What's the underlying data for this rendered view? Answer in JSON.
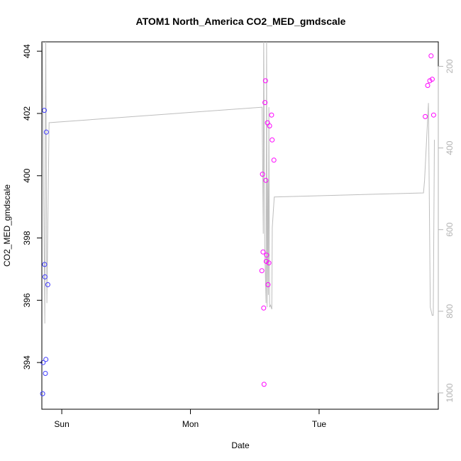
{
  "chart_data": {
    "type": "scatter",
    "title": "ATOM1 North_America CO2_MED_gmdscale",
    "xlabel": "Date",
    "ylabel": "CO2_MED_gmdscale",
    "x_axis": {
      "type": "date",
      "range": [
        "Sat 20:17",
        "Tue 22:14"
      ],
      "ticks": [
        {
          "value": "Sun 00:00",
          "label": "Sun"
        },
        {
          "value": "Mon 00:00",
          "label": "Mon"
        },
        {
          "value": "Tue 00:00",
          "label": "Tue"
        }
      ]
    },
    "y_axis": {
      "range": [
        392.5,
        404.3
      ],
      "ticks": [
        394,
        396,
        398,
        400,
        402,
        404
      ]
    },
    "y2_axis": {
      "reversed": true,
      "range": [
        1040,
        140
      ],
      "ticks": [
        200,
        400,
        600,
        800,
        1000
      ],
      "color": "#b3b3b3"
    },
    "series": [
      {
        "kind": "points",
        "color_scale": [
          "#3b3bff",
          "#ff00ff"
        ],
        "points": [
          {
            "x": "Sat 20:26",
            "y": 393.0
          },
          {
            "x": "Sat 20:31",
            "y": 394.0
          },
          {
            "x": "Sat 20:45",
            "y": 402.1
          },
          {
            "x": "Sat 20:48",
            "y": 397.15
          },
          {
            "x": "Sat 20:52",
            "y": 396.75
          },
          {
            "x": "Sat 20:57",
            "y": 393.65
          },
          {
            "x": "Sat 21:02",
            "y": 394.1
          },
          {
            "x": "Sat 21:07",
            "y": 401.4
          },
          {
            "x": "Sat 21:24",
            "y": 396.5
          },
          {
            "x": "Mon 13:19",
            "y": 396.95
          },
          {
            "x": "Mon 13:26",
            "y": 400.05
          },
          {
            "x": "Mon 13:33",
            "y": 397.55
          },
          {
            "x": "Mon 13:40",
            "y": 395.75
          },
          {
            "x": "Mon 13:44",
            "y": 393.3
          },
          {
            "x": "Mon 13:54",
            "y": 402.35
          },
          {
            "x": "Mon 14:00",
            "y": 403.05
          },
          {
            "x": "Mon 14:04",
            "y": 399.85
          },
          {
            "x": "Mon 14:08",
            "y": 397.25
          },
          {
            "x": "Mon 14:12",
            "y": 397.45
          },
          {
            "x": "Mon 14:22",
            "y": 401.7
          },
          {
            "x": "Mon 14:28",
            "y": 396.5
          },
          {
            "x": "Mon 14:38",
            "y": 397.2
          },
          {
            "x": "Mon 14:46",
            "y": 401.6
          },
          {
            "x": "Mon 15:08",
            "y": 401.95
          },
          {
            "x": "Mon 15:14",
            "y": 401.15
          },
          {
            "x": "Mon 15:34",
            "y": 400.5
          },
          {
            "x": "Tue 19:48",
            "y": 401.9
          },
          {
            "x": "Tue 20:15",
            "y": 402.9
          },
          {
            "x": "Tue 20:39",
            "y": 403.05
          },
          {
            "x": "Tue 20:53",
            "y": 403.85
          },
          {
            "x": "Tue 21:06",
            "y": 403.1
          },
          {
            "x": "Tue 21:22",
            "y": 401.95
          }
        ]
      },
      {
        "kind": "line",
        "axis": "right",
        "color": "#bdbdbd",
        "values": [
          {
            "x": "Sat 20:23",
            "y": 120
          },
          {
            "x": "Sat 20:32",
            "y": 400
          },
          {
            "x": "Sat 20:50",
            "y": 830
          },
          {
            "x": "Sat 20:55",
            "y": 400
          },
          {
            "x": "Sat 21:01",
            "y": 120
          },
          {
            "x": "Sat 21:13",
            "y": 780
          },
          {
            "x": "Sat 21:38",
            "y": 338
          },
          {
            "x": "Mon 13:22",
            "y": 300
          },
          {
            "x": "Mon 13:35",
            "y": 610
          },
          {
            "x": "Mon 13:40",
            "y": 120
          },
          {
            "x": "Mon 13:52",
            "y": 640
          },
          {
            "x": "Mon 14:06",
            "y": 780
          },
          {
            "x": "Mon 14:12",
            "y": 120
          },
          {
            "x": "Mon 14:18",
            "y": 790
          },
          {
            "x": "Mon 14:26",
            "y": 480
          },
          {
            "x": "Mon 14:32",
            "y": 760
          },
          {
            "x": "Mon 14:38",
            "y": 300
          },
          {
            "x": "Mon 14:46",
            "y": 790
          },
          {
            "x": "Mon 14:57",
            "y": 785
          },
          {
            "x": "Mon 15:10",
            "y": 795
          },
          {
            "x": "Mon 15:16",
            "y": 595
          },
          {
            "x": "Mon 15:38",
            "y": 520
          },
          {
            "x": "Tue 19:28",
            "y": 510
          },
          {
            "x": "Tue 19:40",
            "y": 480
          },
          {
            "x": "Tue 20:24",
            "y": 290
          },
          {
            "x": "Tue 20:44",
            "y": 790
          },
          {
            "x": "Tue 21:06",
            "y": 810
          },
          {
            "x": "Tue 21:18",
            "y": 810
          },
          {
            "x": "Tue 21:30",
            "y": 380
          }
        ]
      }
    ],
    "grid": false,
    "legend": "none"
  }
}
